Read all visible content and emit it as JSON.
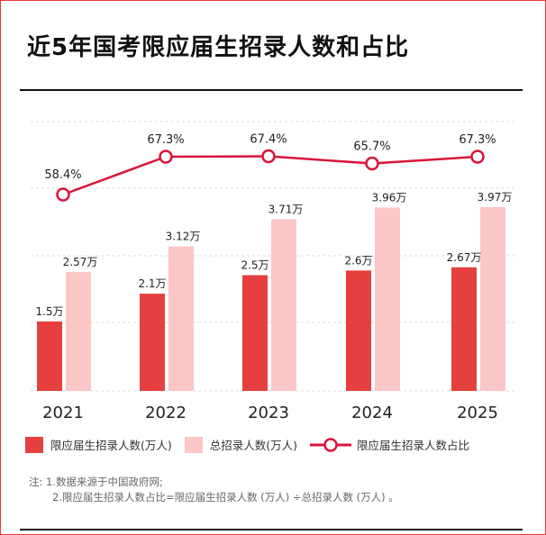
{
  "title": "近5年国考限应届生招录人数和占比",
  "chart_data": {
    "type": "bar+line",
    "categories": [
      "2021",
      "2022",
      "2023",
      "2024",
      "2025"
    ],
    "series": [
      {
        "name": "限应届生招录人数(万人)",
        "type": "bar",
        "values": [
          1.5,
          2.1,
          2.5,
          2.6,
          2.67
        ],
        "labels": [
          "1.5万",
          "2.1万",
          "2.5万",
          "2.6万",
          "2.67万"
        ],
        "color": "#e5403f"
      },
      {
        "name": "总招录人数(万人)",
        "type": "bar",
        "values": [
          2.57,
          3.12,
          3.71,
          3.96,
          3.97
        ],
        "labels": [
          "2.57万",
          "3.12万",
          "3.71万",
          "3.96万",
          "3.97万"
        ],
        "color": "#fbc6c6"
      },
      {
        "name": "限应届生招录人数占比",
        "type": "line",
        "values": [
          58.4,
          67.3,
          67.4,
          65.7,
          67.3
        ],
        "labels": [
          "58.4%",
          "67.3%",
          "67.4%",
          "65.7%",
          "67.3%"
        ],
        "color": "#d9143a"
      }
    ],
    "grid": true,
    "legend": "bottom"
  },
  "notes": [
    "注: 1.数据来源于中国政府网;",
    "2.限应届生招录人数占比=限应届生招录人数 (万人) ÷总招录人数 (万人) 。"
  ]
}
